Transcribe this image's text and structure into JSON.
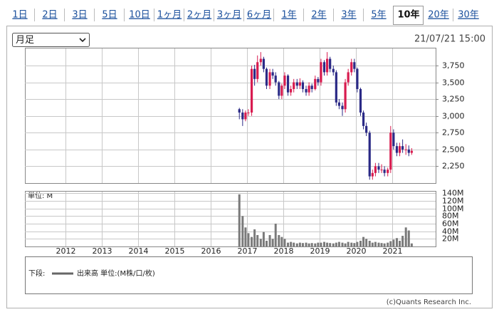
{
  "tabs": [
    "1日",
    "2日",
    "3日",
    "5日",
    "10日",
    "1ヶ月",
    "2ヶ月",
    "3ヶ月",
    "6ヶ月",
    "1年",
    "2年",
    "3年",
    "5年",
    "10年",
    "20年",
    "30年"
  ],
  "selected_tab": 13,
  "period_select": "月足",
  "timestamp": "21/07/21 15:00",
  "chart_data": {
    "type": "candlestick",
    "x": [
      2016.79,
      2016.88,
      2016.96,
      2017.04,
      2017.13,
      2017.21,
      2017.29,
      2017.38,
      2017.46,
      2017.54,
      2017.63,
      2017.71,
      2017.79,
      2017.88,
      2017.96,
      2018.04,
      2018.13,
      2018.21,
      2018.29,
      2018.38,
      2018.46,
      2018.54,
      2018.63,
      2018.71,
      2018.79,
      2018.88,
      2018.96,
      2019.04,
      2019.13,
      2019.21,
      2019.29,
      2019.38,
      2019.46,
      2019.54,
      2019.63,
      2019.71,
      2019.79,
      2019.88,
      2019.96,
      2020.04,
      2020.13,
      2020.21,
      2020.29,
      2020.38,
      2020.46,
      2020.54,
      2020.63,
      2020.71,
      2020.79,
      2020.88,
      2020.96,
      2021.04,
      2021.13,
      2021.21,
      2021.29,
      2021.38,
      2021.46,
      2021.54
    ],
    "open": [
      3100,
      3050,
      2950,
      3050,
      3050,
      3700,
      3550,
      3800,
      3850,
      3700,
      3450,
      3650,
      3600,
      3500,
      3300,
      3450,
      3600,
      3350,
      3400,
      3500,
      3450,
      3500,
      3400,
      3350,
      3450,
      3400,
      3550,
      3500,
      3800,
      3650,
      3850,
      3700,
      3650,
      3200,
      3150,
      3100,
      3500,
      3650,
      3800,
      3700,
      3400,
      3050,
      2850,
      2750,
      2100,
      2150,
      2250,
      2200,
      2200,
      2150,
      2200,
      2750,
      2550,
      2450,
      2550,
      2500,
      2500,
      2450
    ],
    "high": [
      3120,
      3100,
      3080,
      3100,
      3750,
      3760,
      3900,
      3950,
      3880,
      3720,
      3700,
      3700,
      3650,
      3520,
      3480,
      3650,
      3620,
      3450,
      3550,
      3550,
      3560,
      3530,
      3450,
      3500,
      3480,
      3600,
      3580,
      3850,
      3830,
      3950,
      3880,
      3750,
      3680,
      3250,
      3200,
      3550,
      3700,
      3850,
      3850,
      3720,
      3420,
      3080,
      2900,
      2780,
      2200,
      2300,
      2300,
      2280,
      2250,
      2230,
      2850,
      2800,
      2600,
      2600,
      2650,
      2580,
      2560,
      2520
    ],
    "low": [
      2950,
      2850,
      2920,
      3000,
      3000,
      3450,
      3500,
      3750,
      3650,
      3400,
      3400,
      3550,
      3450,
      3250,
      3250,
      3400,
      3300,
      3300,
      3350,
      3400,
      3400,
      3350,
      3300,
      3300,
      3350,
      3380,
      3450,
      3450,
      3600,
      3600,
      3650,
      3600,
      3150,
      3100,
      3000,
      3050,
      3450,
      3600,
      3650,
      3350,
      3000,
      2800,
      2700,
      2050,
      2050,
      2100,
      2150,
      2150,
      2100,
      2100,
      2150,
      2500,
      2400,
      2400,
      2450,
      2420,
      2400,
      2420
    ],
    "close": [
      3050,
      2950,
      3050,
      3050,
      3700,
      3550,
      3800,
      3850,
      3700,
      3450,
      3650,
      3600,
      3500,
      3300,
      3450,
      3600,
      3350,
      3400,
      3500,
      3450,
      3500,
      3400,
      3350,
      3450,
      3400,
      3550,
      3500,
      3800,
      3650,
      3850,
      3700,
      3650,
      3200,
      3150,
      3100,
      3500,
      3650,
      3800,
      3700,
      3400,
      3050,
      2850,
      2750,
      2100,
      2150,
      2250,
      2200,
      2200,
      2150,
      2200,
      2750,
      2550,
      2450,
      2550,
      2500,
      2500,
      2450,
      2480
    ],
    "volume": [
      137,
      80,
      50,
      35,
      25,
      45,
      30,
      20,
      38,
      15,
      30,
      20,
      60,
      30,
      25,
      20,
      10,
      12,
      10,
      8,
      10,
      9,
      10,
      8,
      9,
      8,
      10,
      10,
      12,
      10,
      9,
      8,
      10,
      12,
      10,
      8,
      12,
      10,
      9,
      12,
      15,
      25,
      20,
      15,
      10,
      12,
      10,
      9,
      8,
      10,
      14,
      18,
      22,
      15,
      28,
      50,
      42,
      8
    ],
    "up_color": "#d81b4f",
    "down_color": "#2b2a86",
    "volume_color": "#7a7a7a",
    "grid": true,
    "xlim": [
      2010.88,
      2022.2
    ],
    "xticks": [
      2012,
      2013,
      2014,
      2015,
      2016,
      2017,
      2018,
      2019,
      2020,
      2021
    ],
    "ylim": [
      2000,
      4015
    ],
    "yticks": [
      {
        "value": 2250,
        "label": "2,250"
      },
      {
        "value": 2500,
        "label": "2,500"
      },
      {
        "value": 2750,
        "label": "2,750"
      },
      {
        "value": 3000,
        "label": "3,000"
      },
      {
        "value": 3250,
        "label": "3,250"
      },
      {
        "value": 3500,
        "label": "3,500"
      },
      {
        "value": 3750,
        "label": "3,750"
      }
    ],
    "y2_label": "単位: M",
    "y2lim": [
      0,
      146
    ],
    "y2ticks": [
      {
        "value": 20,
        "label": "20M"
      },
      {
        "value": 40,
        "label": "40M"
      },
      {
        "value": 60,
        "label": "60M"
      },
      {
        "value": 80,
        "label": "80M"
      },
      {
        "value": 100,
        "label": "100M"
      },
      {
        "value": 120,
        "label": "120M"
      },
      {
        "value": 140,
        "label": "140M"
      }
    ]
  },
  "legend": {
    "prefix": "下段:",
    "label": "出来高 単位:(M株/口/枚)"
  },
  "copyright": "(c)Quants Research Inc."
}
